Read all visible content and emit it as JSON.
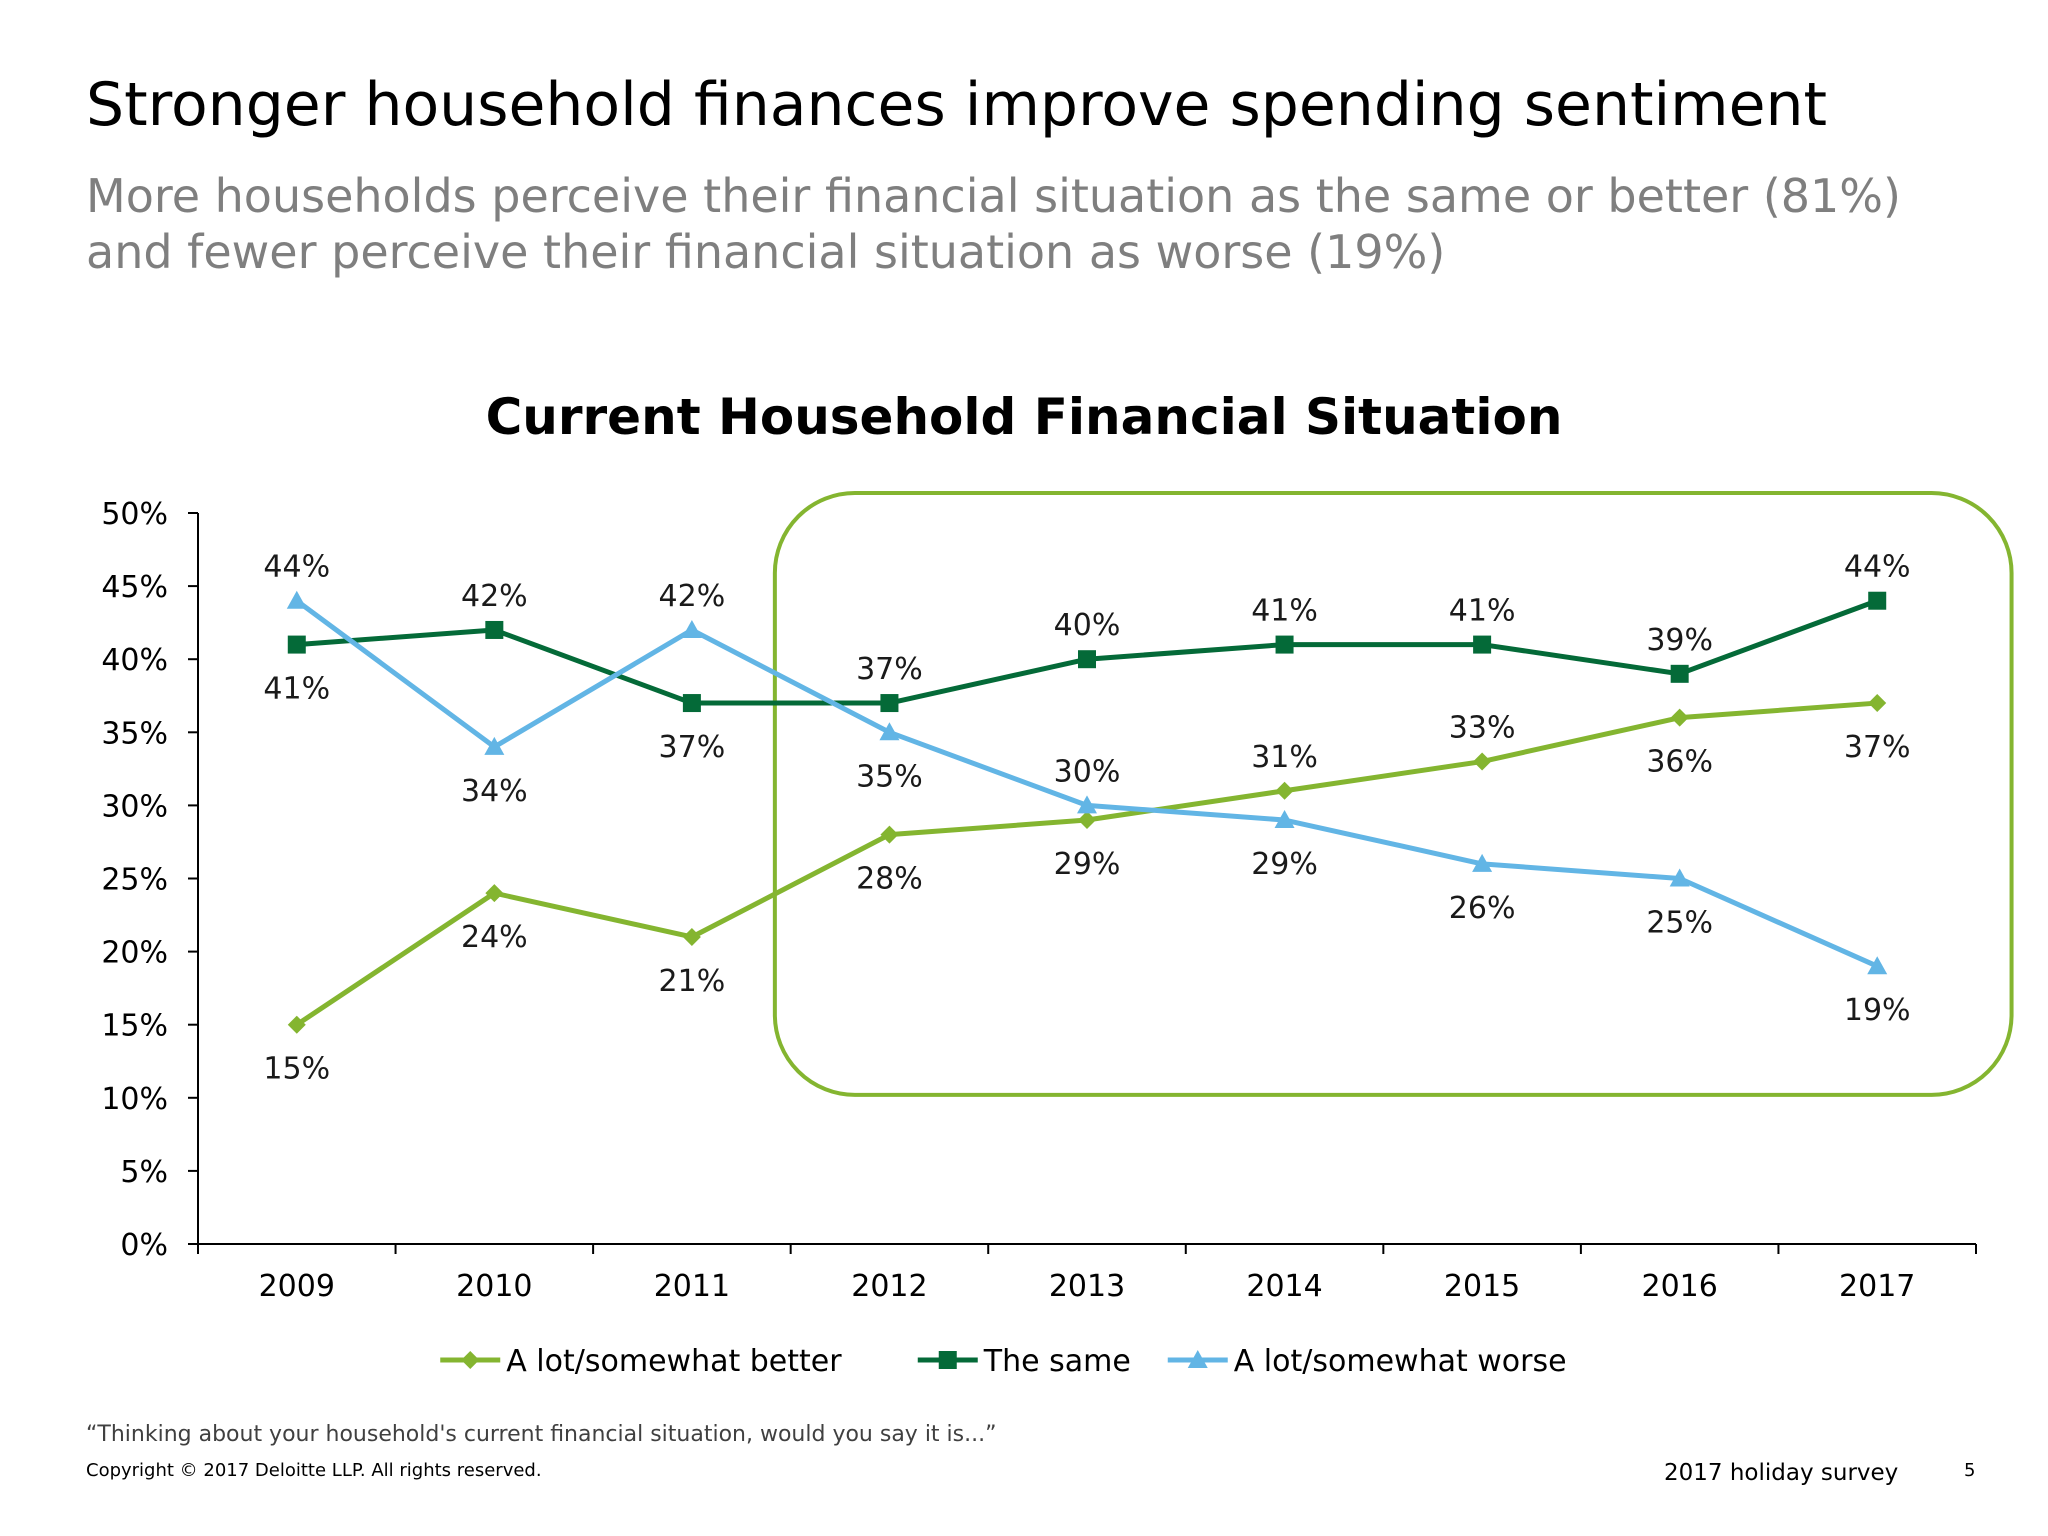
{
  "slide": {
    "title": "Stronger household finances improve spending sentiment",
    "subtitle_line1": "More households perceive their financial situation as the same or better (81%)",
    "subtitle_line2": "and fewer perceive their financial situation as worse (19%)",
    "footnote": "“Thinking about your household's current financial situation, would you say it is...”",
    "copyright": "Copyright © 2017 Deloitte LLP. All rights reserved.",
    "survey_label": "2017 holiday survey",
    "page_number": "5"
  },
  "chart_data": {
    "type": "line",
    "title": "Current Household Financial Situation",
    "categories": [
      "2009",
      "2010",
      "2011",
      "2012",
      "2013",
      "2014",
      "2015",
      "2016",
      "2017"
    ],
    "ylim": [
      0,
      50
    ],
    "yticks": [
      "0%",
      "5%",
      "10%",
      "15%",
      "20%",
      "25%",
      "30%",
      "35%",
      "40%",
      "45%",
      "50%"
    ],
    "value_suffix": "%",
    "highlight_range": [
      "2012",
      "2017"
    ],
    "legend_position": "bottom",
    "series": [
      {
        "name": "A lot/somewhat better",
        "color": "#84b530",
        "marker": "diamond",
        "values": [
          15,
          24,
          21,
          28,
          29,
          31,
          33,
          36,
          37
        ],
        "label_position": [
          "below",
          "below",
          "below",
          "below",
          "below",
          "above",
          "above",
          "below",
          "below"
        ]
      },
      {
        "name": "The same",
        "color": "#046a38",
        "marker": "square",
        "values": [
          41,
          42,
          37,
          37,
          40,
          41,
          41,
          39,
          44
        ],
        "label_position": [
          "below",
          "above",
          "below",
          "above",
          "above",
          "above",
          "above",
          "above",
          "above"
        ]
      },
      {
        "name": "A lot/somewhat worse",
        "color": "#62b5e5",
        "marker": "triangle",
        "values": [
          44,
          34,
          42,
          35,
          30,
          29,
          26,
          25,
          19
        ],
        "label_position": [
          "above",
          "below",
          "above",
          "below",
          "above",
          "below",
          "below",
          "below",
          "below"
        ]
      }
    ]
  }
}
